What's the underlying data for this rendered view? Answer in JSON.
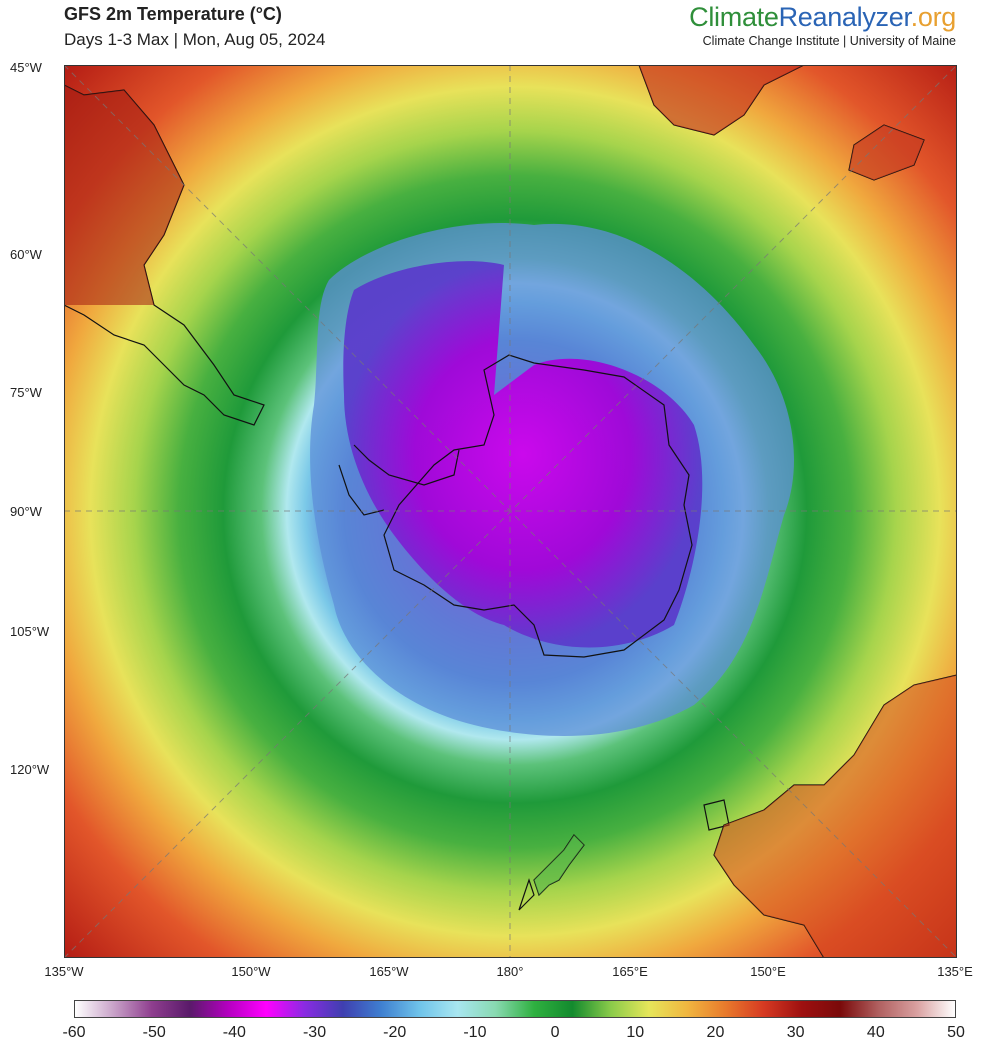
{
  "header": {
    "title": "GFS 2m Temperature (°C)",
    "subtitle": "Days 1-3 Max | Mon, Aug 05, 2024",
    "brand_part1": "Climate",
    "brand_part2": "Reanalyzer",
    "brand_part3": ".org",
    "brand_sub": "Climate Change Institute | University of Maine"
  },
  "map": {
    "projection": "south-polar-stereographic",
    "left_axis_labels": [
      "45°W",
      "60°W",
      "75°W",
      "90°W",
      "105°W",
      "120°W"
    ],
    "bottom_axis_labels": [
      "135°W",
      "150°W",
      "165°W",
      "180°",
      "165°E",
      "150°E",
      "135°E"
    ],
    "regions": [
      "South America",
      "Antarctic Peninsula",
      "Antarctica",
      "Africa",
      "Madagascar",
      "Australia",
      "Tasmania",
      "New Zealand"
    ]
  },
  "colorbar": {
    "unit": "°C",
    "min": -60,
    "max": 50,
    "tick_labels": [
      "-60",
      "-50",
      "-40",
      "-30",
      "-20",
      "-10",
      "0",
      "10",
      "20",
      "30",
      "40",
      "50"
    ],
    "colors": [
      "#ffffff",
      "#c9a3c9",
      "#8f3f8f",
      "#5a1a6a",
      "#b400c0",
      "#ff00ff",
      "#8a2be2",
      "#3f3fb0",
      "#3f7fd0",
      "#6fc3ea",
      "#a8e6f0",
      "#88d9b0",
      "#2fb040",
      "#138a2e",
      "#8acb4a",
      "#e6e65a",
      "#f0b640",
      "#e87a2c",
      "#d63a22",
      "#9e1010",
      "#7a0a0a",
      "#b06060",
      "#d9a0a0",
      "#ffffff"
    ]
  }
}
